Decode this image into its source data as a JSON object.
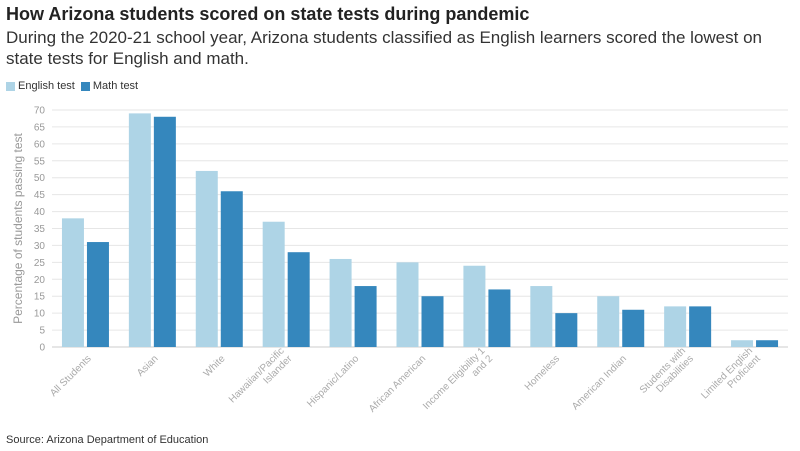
{
  "title": "How Arizona students scored on state tests during pandemic",
  "subtitle": "During the 2020-21 school year, Arizona students classified as English learners scored the lowest on state tests for English and math.",
  "source": "Source: Arizona Department of Education",
  "colors": {
    "english": "#aed4e6",
    "math": "#3587bd",
    "grid": "#e6e6e6",
    "axis": "#cccccc"
  },
  "chart_data": {
    "type": "bar",
    "title": "How Arizona students scored on state tests during pandemic",
    "subtitle": "During the 2020-21 school year, Arizona students classified as English learners scored the lowest on state tests for English and math.",
    "xlabel": "",
    "ylabel": "Percentage of students passing test",
    "ylim": [
      0,
      70
    ],
    "yticks": [
      0,
      5,
      10,
      15,
      20,
      25,
      30,
      35,
      40,
      45,
      50,
      55,
      60,
      65,
      70
    ],
    "grid": true,
    "legend_position": "top-left",
    "categories": [
      [
        "All Students"
      ],
      [
        "Asian"
      ],
      [
        "White"
      ],
      [
        "Hawaiian/Pacific",
        "Islander"
      ],
      [
        "Hispanic/Latino"
      ],
      [
        "African American"
      ],
      [
        "Income Eligibility 1",
        "and 2"
      ],
      [
        "Homeless"
      ],
      [
        "American Indian"
      ],
      [
        "Students with",
        "Disabilities"
      ],
      [
        "Limited English",
        "Proficient"
      ]
    ],
    "series": [
      {
        "name": "English test",
        "values": [
          38,
          69,
          52,
          37,
          26,
          25,
          24,
          18,
          15,
          12,
          2
        ]
      },
      {
        "name": "Math test",
        "values": [
          31,
          68,
          46,
          28,
          18,
          15,
          17,
          10,
          11,
          12,
          2
        ]
      }
    ]
  }
}
